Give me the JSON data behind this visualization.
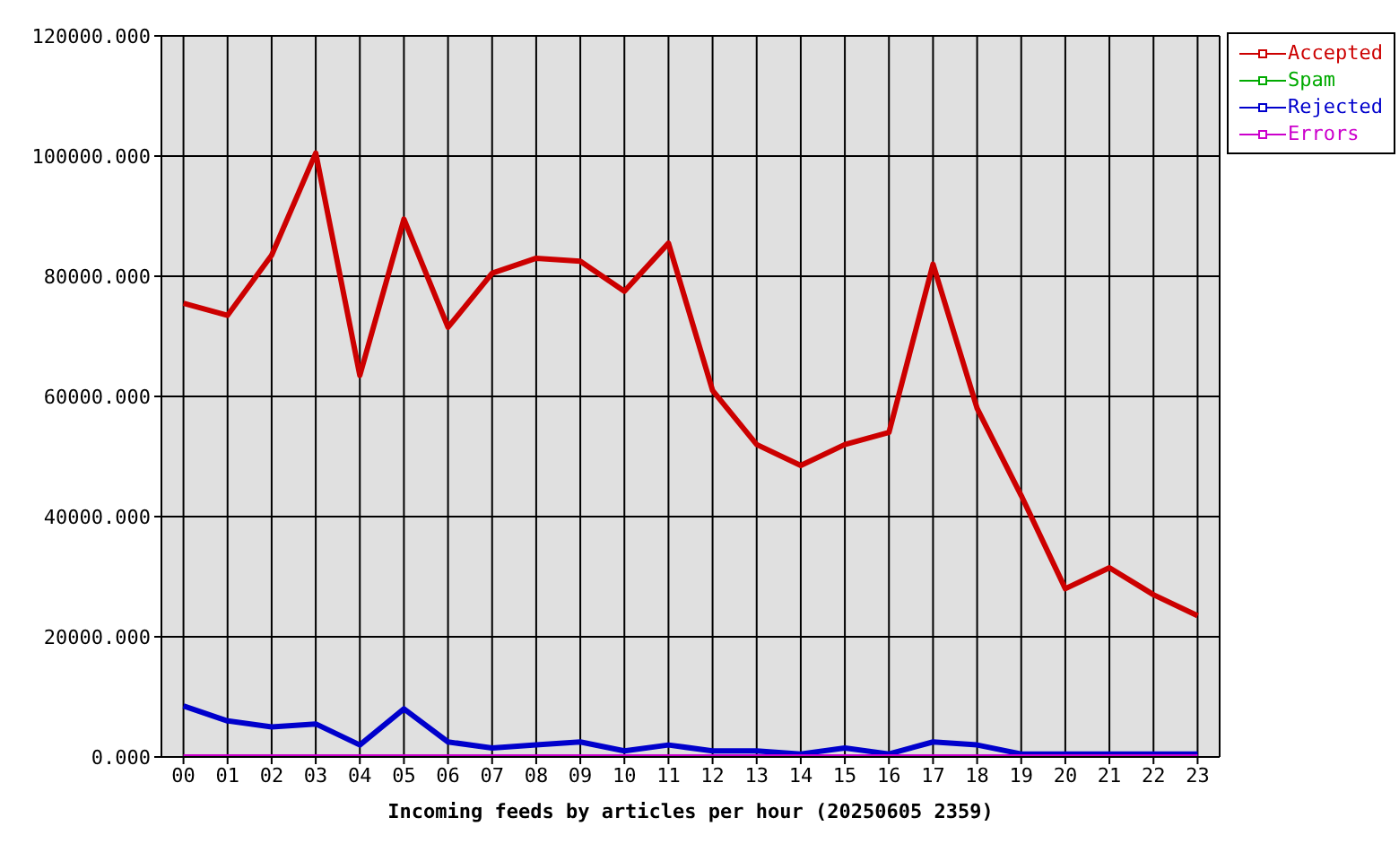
{
  "chart_data": {
    "type": "line",
    "xlabel": "Incoming feeds by articles per hour (20250605 2359)",
    "categories": [
      "00",
      "01",
      "02",
      "03",
      "04",
      "05",
      "06",
      "07",
      "08",
      "09",
      "10",
      "11",
      "12",
      "13",
      "14",
      "15",
      "16",
      "17",
      "18",
      "19",
      "20",
      "21",
      "22",
      "23"
    ],
    "series": [
      {
        "name": "Accepted",
        "color": "#cc0000",
        "values": [
          75500,
          73500,
          83500,
          100500,
          63500,
          89500,
          71500,
          80500,
          83000,
          82500,
          77500,
          85500,
          61000,
          52000,
          48500,
          52000,
          54000,
          82000,
          58000,
          43500,
          28000,
          31500,
          27000,
          23500
        ]
      },
      {
        "name": "Spam",
        "color": "#00aa00",
        "values": [
          null,
          null,
          null,
          null,
          null,
          null,
          null,
          null,
          null,
          null,
          null,
          null,
          null,
          null,
          null,
          null,
          null,
          null,
          null,
          null,
          null,
          null,
          null,
          null
        ]
      },
      {
        "name": "Rejected",
        "color": "#0000cc",
        "values": [
          8500,
          6000,
          5000,
          5500,
          2000,
          8000,
          2500,
          1500,
          2000,
          2500,
          1000,
          2000,
          1000,
          1000,
          500,
          1500,
          500,
          2500,
          2000,
          500,
          500,
          500,
          500,
          500
        ]
      },
      {
        "name": "Errors",
        "color": "#cc00cc",
        "values": [
          0,
          0,
          0,
          0,
          0,
          0,
          0,
          0,
          0,
          0,
          0,
          0,
          0,
          0,
          0,
          0,
          0,
          0,
          0,
          0,
          0,
          0,
          0,
          0
        ]
      }
    ],
    "ylim": [
      0,
      120000
    ],
    "yticks": [
      {
        "value": 0,
        "label": "0.000"
      },
      {
        "value": 20000,
        "label": "20000.000"
      },
      {
        "value": 40000,
        "label": "40000.000"
      },
      {
        "value": 60000,
        "label": "60000.000"
      },
      {
        "value": 80000,
        "label": "80000.000"
      },
      {
        "value": 100000,
        "label": "100000.000"
      },
      {
        "value": 120000,
        "label": "120000.000"
      }
    ],
    "grid": true,
    "legend": "top right"
  }
}
